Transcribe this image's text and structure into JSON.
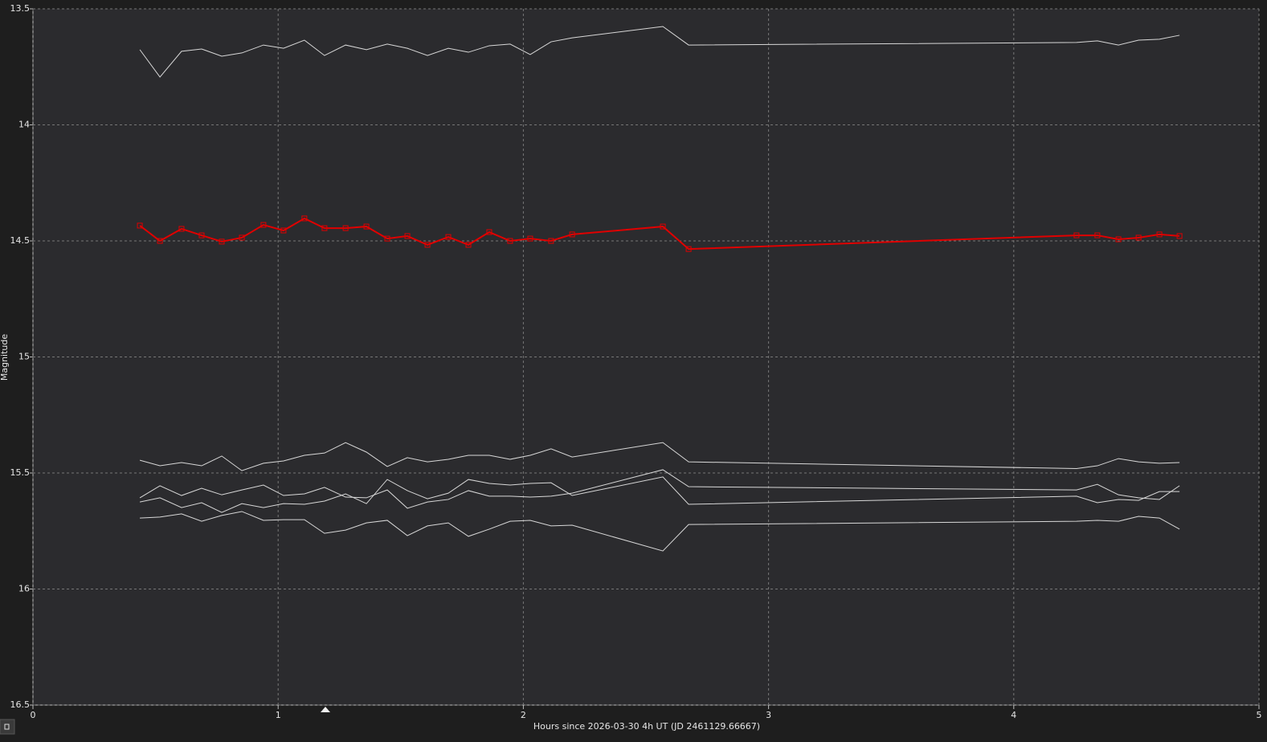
{
  "chart_data": {
    "type": "line",
    "x_label": "Hours since 2026-03-30 4h UT (JD 2461129.66667)",
    "y_label": "Magnitude",
    "x": [
      0.436,
      0.518,
      0.606,
      0.688,
      0.77,
      0.852,
      0.94,
      1.022,
      1.107,
      1.189,
      1.275,
      1.36,
      1.445,
      1.527,
      1.609,
      1.694,
      1.776,
      1.861,
      1.946,
      2.028,
      2.113,
      2.199,
      2.569,
      2.674,
      4.256,
      4.341,
      4.427,
      4.509,
      4.594,
      4.676
    ],
    "series": [
      {
        "color": "#d8d8d8",
        "values": [
          13.676,
          13.794,
          13.683,
          13.673,
          13.704,
          13.69,
          13.656,
          13.67,
          13.635,
          13.701,
          13.656,
          13.676,
          13.652,
          13.67,
          13.701,
          13.67,
          13.687,
          13.659,
          13.652,
          13.697,
          13.642,
          13.625,
          13.576,
          13.656,
          13.645,
          13.638,
          13.656,
          13.635,
          13.631,
          13.614
        ]
      },
      {
        "color": "#e00000",
        "marker": "square",
        "values": [
          14.434,
          14.5,
          14.448,
          14.476,
          14.503,
          14.486,
          14.431,
          14.455,
          14.403,
          14.445,
          14.445,
          14.438,
          14.49,
          14.479,
          14.517,
          14.483,
          14.517,
          14.462,
          14.5,
          14.49,
          14.5,
          14.472,
          14.438,
          14.535,
          14.476,
          14.476,
          14.493,
          14.486,
          14.472,
          14.479
        ]
      },
      {
        "color": "#d8d8d8",
        "values": [
          15.445,
          15.469,
          15.455,
          15.469,
          15.427,
          15.49,
          15.458,
          15.448,
          15.424,
          15.414,
          15.369,
          15.41,
          15.472,
          15.434,
          15.452,
          15.441,
          15.424,
          15.424,
          15.441,
          15.424,
          15.396,
          15.431,
          15.369,
          15.452,
          15.481,
          15.469,
          15.438,
          15.452,
          15.458,
          15.455
        ]
      },
      {
        "color": "#d8d8d8",
        "values": [
          15.607,
          15.555,
          15.597,
          15.566,
          15.594,
          15.573,
          15.552,
          15.597,
          15.59,
          15.562,
          15.604,
          15.607,
          15.573,
          15.652,
          15.625,
          15.614,
          15.576,
          15.6,
          15.6,
          15.604,
          15.6,
          15.587,
          15.486,
          15.559,
          15.573,
          15.549,
          15.594,
          15.607,
          15.614,
          15.555
        ]
      },
      {
        "color": "#d8d8d8",
        "values": [
          15.625,
          15.607,
          15.649,
          15.628,
          15.67,
          15.632,
          15.649,
          15.632,
          15.635,
          15.621,
          15.59,
          15.632,
          15.528,
          15.576,
          15.611,
          15.587,
          15.528,
          15.545,
          15.552,
          15.545,
          15.542,
          15.597,
          15.517,
          15.635,
          15.6,
          15.628,
          15.614,
          15.618,
          15.58,
          15.58
        ]
      },
      {
        "color": "#d8d8d8",
        "values": [
          15.694,
          15.69,
          15.676,
          15.708,
          15.683,
          15.666,
          15.704,
          15.701,
          15.701,
          15.76,
          15.746,
          15.715,
          15.704,
          15.77,
          15.728,
          15.715,
          15.773,
          15.742,
          15.708,
          15.704,
          15.728,
          15.725,
          15.836,
          15.722,
          15.708,
          15.704,
          15.708,
          15.687,
          15.694,
          15.742
        ]
      }
    ],
    "xlim": [
      0,
      5
    ],
    "xticks": [
      0,
      1,
      2,
      3,
      4,
      5
    ],
    "ylim": [
      16.5,
      13.5
    ],
    "yticks": [
      13.5,
      14,
      14.5,
      15,
      15.5,
      16,
      16.5
    ],
    "grid": true
  }
}
